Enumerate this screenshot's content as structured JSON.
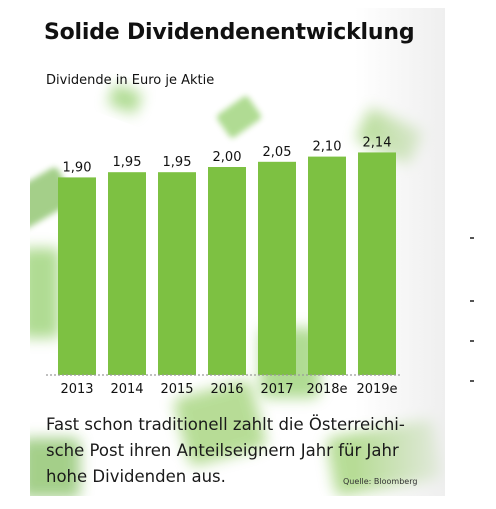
{
  "colors": {
    "bar": "#7dc142",
    "accent": "#8fd14f",
    "text": "#111111",
    "baseline": "#9a9a9a"
  },
  "chart_data": {
    "type": "bar",
    "title": "Solide Dividendenentwicklung",
    "subtitle": "Dividende in Euro je Aktie",
    "categories": [
      "2013",
      "2014",
      "2015",
      "2016",
      "2017",
      "2018e",
      "2019e"
    ],
    "values": [
      1.9,
      1.95,
      1.95,
      2.0,
      2.05,
      2.1,
      2.14
    ],
    "value_labels": [
      "1,90",
      "1,95",
      "1,95",
      "2,00",
      "2,05",
      "2,10",
      "2,14"
    ],
    "ylim": [
      0,
      2.14
    ],
    "grid": false,
    "baseline_dotted": true
  },
  "caption_lines": [
    "Fast schon traditionell zahlt die Österreichi-",
    "sche Post ihren Anteilseignern Jahr für Jahr",
    "hohe Dividenden aus."
  ],
  "source": "Quelle: Bloomberg"
}
